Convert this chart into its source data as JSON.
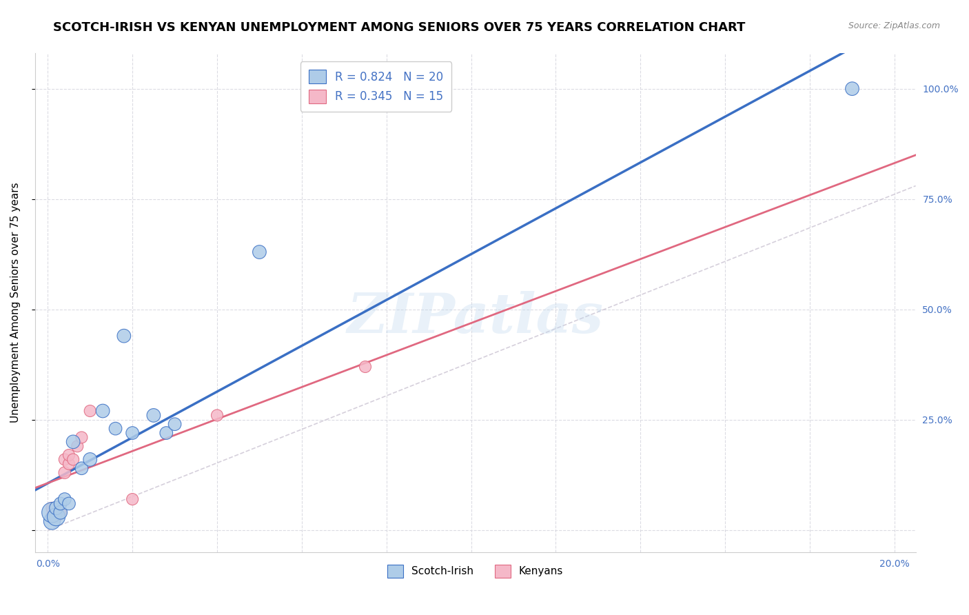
{
  "title": "SCOTCH-IRISH VS KENYAN UNEMPLOYMENT AMONG SENIORS OVER 75 YEARS CORRELATION CHART",
  "source": "Source: ZipAtlas.com",
  "ylabel": "Unemployment Among Seniors over 75 years",
  "watermark": "ZIPatlas",
  "scotch_irish_R": 0.824,
  "scotch_irish_N": 20,
  "kenyan_R": 0.345,
  "kenyan_N": 15,
  "scotch_irish_color": "#aecce8",
  "kenyan_color": "#f5b8c8",
  "scotch_irish_line_color": "#3a6fc4",
  "kenyan_line_color": "#e06880",
  "ref_line_color": "#c8c0d0",
  "scotch_irish_x": [
    0.001,
    0.001,
    0.002,
    0.002,
    0.003,
    0.003,
    0.004,
    0.005,
    0.006,
    0.008,
    0.01,
    0.013,
    0.016,
    0.018,
    0.02,
    0.025,
    0.028,
    0.03,
    0.05,
    0.19
  ],
  "scotch_irish_y": [
    0.02,
    0.04,
    0.03,
    0.05,
    0.04,
    0.06,
    0.07,
    0.06,
    0.2,
    0.14,
    0.16,
    0.27,
    0.23,
    0.44,
    0.22,
    0.26,
    0.22,
    0.24,
    0.63,
    1.0
  ],
  "scotch_irish_size": [
    300,
    450,
    350,
    200,
    200,
    180,
    180,
    180,
    200,
    180,
    200,
    200,
    180,
    200,
    180,
    200,
    180,
    180,
    200,
    200
  ],
  "kenyan_x": [
    0.001,
    0.001,
    0.002,
    0.003,
    0.004,
    0.004,
    0.005,
    0.005,
    0.006,
    0.007,
    0.008,
    0.01,
    0.02,
    0.04,
    0.075
  ],
  "kenyan_y": [
    0.03,
    0.05,
    0.03,
    0.04,
    0.13,
    0.16,
    0.15,
    0.17,
    0.16,
    0.19,
    0.21,
    0.27,
    0.07,
    0.26,
    0.37
  ],
  "kenyan_size": [
    160,
    150,
    150,
    150,
    160,
    150,
    150,
    150,
    150,
    150,
    150,
    150,
    150,
    150,
    150
  ],
  "background_color": "#ffffff",
  "grid_color": "#d8d8e0",
  "title_fontsize": 13,
  "axis_label_fontsize": 11,
  "tick_fontsize": 10,
  "legend_fontsize": 12,
  "si_line_x0": -0.005,
  "si_line_x1": 0.205,
  "ke_line_x0": -0.005,
  "ke_line_x1": 0.205,
  "xlim_min": -0.003,
  "xlim_max": 0.205,
  "ylim_min": -0.05,
  "ylim_max": 1.08
}
